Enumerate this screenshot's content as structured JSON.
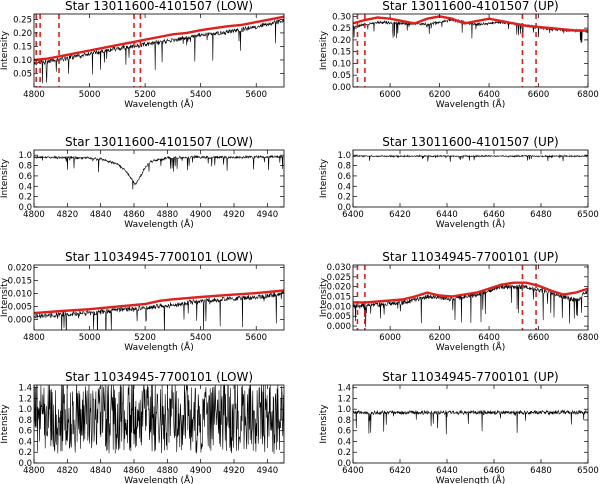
{
  "chart_data": [
    {
      "type": "line",
      "title": "Star 13011600-4101507 (LOW)",
      "xlabel": "Wavelength (Å)",
      "ylabel": "Intensity",
      "xlim": [
        4800,
        5700
      ],
      "ylim": [
        0.0,
        0.27
      ],
      "xticks": [
        4800,
        5000,
        5200,
        5400,
        5600
      ],
      "yticks": [
        0.05,
        0.1,
        0.15,
        0.2,
        0.25
      ],
      "ytick_labels": [
        "0.05",
        "0.10",
        "0.15",
        "0.20",
        "0.25"
      ],
      "series": [
        {
          "role": "spectrum",
          "color": "#000000",
          "noise": 0.45,
          "x": [
            4800,
            4900,
            5000,
            5100,
            5200,
            5300,
            5400,
            5500,
            5600,
            5700
          ],
          "y": [
            0.095,
            0.11,
            0.13,
            0.15,
            0.165,
            0.18,
            0.2,
            0.21,
            0.23,
            0.255
          ]
        },
        {
          "role": "continuum",
          "color": "#e0201c",
          "x": [
            4800,
            4850,
            4900,
            4950,
            5000,
            5050,
            5100,
            5150,
            5200,
            5250,
            5300,
            5350,
            5400,
            5450,
            5500,
            5550,
            5600,
            5650,
            5700
          ],
          "y": [
            0.1,
            0.105,
            0.115,
            0.125,
            0.135,
            0.145,
            0.155,
            0.165,
            0.175,
            0.185,
            0.195,
            0.2,
            0.21,
            0.218,
            0.225,
            0.23,
            0.24,
            0.25,
            0.26
          ]
        }
      ],
      "markers": [
        4808,
        4822,
        4890,
        5160,
        5183
      ]
    },
    {
      "type": "line",
      "title": "Star 13011600-4101507 (UP)",
      "xlabel": "Wavelength (Å)",
      "ylabel": "Intensity",
      "xlim": [
        5850,
        6800
      ],
      "ylim": [
        0.0,
        0.31
      ],
      "xticks": [
        6000,
        6200,
        6400,
        6600,
        6800
      ],
      "yticks": [
        0.0,
        0.05,
        0.1,
        0.15,
        0.2,
        0.25,
        0.3
      ],
      "ytick_labels": [
        "0.00",
        "0.05",
        "0.10",
        "0.15",
        "0.20",
        "0.25",
        "0.30"
      ],
      "series": [
        {
          "role": "spectrum",
          "color": "#000000",
          "noise": 0.25,
          "x": [
            5850,
            5950,
            6050,
            6150,
            6250,
            6350,
            6450,
            6550,
            6650,
            6800
          ],
          "y": [
            0.26,
            0.28,
            0.275,
            0.27,
            0.29,
            0.27,
            0.28,
            0.265,
            0.25,
            0.24
          ]
        },
        {
          "role": "continuum",
          "color": "#e0201c",
          "x": [
            5850,
            5900,
            5950,
            6000,
            6050,
            6100,
            6150,
            6200,
            6250,
            6300,
            6350,
            6400,
            6450,
            6500,
            6550,
            6600,
            6650,
            6700,
            6750,
            6800
          ],
          "y": [
            0.27,
            0.285,
            0.295,
            0.29,
            0.28,
            0.27,
            0.29,
            0.3,
            0.29,
            0.27,
            0.28,
            0.29,
            0.28,
            0.27,
            0.26,
            0.255,
            0.25,
            0.245,
            0.24,
            0.24
          ]
        }
      ],
      "markers": [
        5868,
        5898,
        6535,
        6590
      ]
    },
    {
      "type": "line",
      "title": "Star 13011600-4101507 (LOW)",
      "xlabel": "Wavelength (Å)",
      "ylabel": "Intensity",
      "xlim": [
        4800,
        4950
      ],
      "ylim": [
        0.0,
        1.1
      ],
      "xticks": [
        4800,
        4820,
        4840,
        4860,
        4880,
        4900,
        4920,
        4940
      ],
      "yticks": [
        0.0,
        0.2,
        0.4,
        0.6,
        0.8,
        1.0
      ],
      "ytick_labels": [
        "0.0",
        "0.2",
        "0.4",
        "0.6",
        "0.8",
        "1.0"
      ],
      "series": [
        {
          "role": "spectrum",
          "color": "#000000",
          "noise": 0.3,
          "x": [
            4800,
            4830,
            4840,
            4850,
            4855,
            4861,
            4866,
            4870,
            4880,
            4900,
            4920,
            4950
          ],
          "y": [
            0.98,
            0.97,
            0.94,
            0.85,
            0.72,
            0.45,
            0.75,
            0.9,
            0.97,
            0.98,
            0.98,
            0.99
          ]
        }
      ],
      "markers": []
    },
    {
      "type": "line",
      "title": "Star 13011600-4101507 (UP)",
      "xlabel": "Wavelength (Å)",
      "ylabel": "Intensity",
      "xlim": [
        6400,
        6500
      ],
      "ylim": [
        0.0,
        1.1
      ],
      "xticks": [
        6400,
        6420,
        6440,
        6460,
        6480,
        6500
      ],
      "yticks": [
        0.0,
        0.2,
        0.4,
        0.6,
        0.8,
        1.0
      ],
      "ytick_labels": [
        "0.0",
        "0.2",
        "0.4",
        "0.6",
        "0.8",
        "1.0"
      ],
      "series": [
        {
          "role": "spectrum",
          "color": "#000000",
          "noise": 0.12,
          "x": [
            6400,
            6420,
            6440,
            6460,
            6480,
            6500
          ],
          "y": [
            0.99,
            0.99,
            0.99,
            0.99,
            0.99,
            0.99
          ]
        }
      ],
      "markers": []
    },
    {
      "type": "line",
      "title": "Star 11034945-7700101 (LOW)",
      "xlabel": "Wavelength (Å)",
      "ylabel": "Intensity",
      "xlim": [
        4800,
        5700
      ],
      "ylim": [
        -0.004,
        0.021
      ],
      "xticks": [
        4800,
        5000,
        5200,
        5400,
        5600
      ],
      "yticks": [
        0.0,
        0.005,
        0.01,
        0.015,
        0.02
      ],
      "ytick_labels": [
        "0.000",
        "0.005",
        "0.010",
        "0.015",
        "0.020"
      ],
      "series": [
        {
          "role": "spectrum",
          "color": "#000000",
          "noise": 0.6,
          "x": [
            4800,
            4900,
            5000,
            5100,
            5200,
            5300,
            5400,
            5500,
            5600,
            5700
          ],
          "y": [
            0.002,
            0.003,
            0.0035,
            0.0045,
            0.0055,
            0.0065,
            0.008,
            0.009,
            0.0095,
            0.011
          ]
        },
        {
          "role": "continuum",
          "color": "#e0201c",
          "x": [
            4800,
            4900,
            5000,
            5100,
            5200,
            5250,
            5300,
            5400,
            5500,
            5600,
            5700
          ],
          "y": [
            0.0025,
            0.0033,
            0.004,
            0.005,
            0.006,
            0.0072,
            0.0078,
            0.0087,
            0.0095,
            0.0102,
            0.0112
          ]
        }
      ],
      "markers": []
    },
    {
      "type": "line",
      "title": "Star 11034945-7700101 (UP)",
      "xlabel": "Wavelength (Å)",
      "ylabel": "Intensity",
      "xlim": [
        5850,
        6800
      ],
      "ylim": [
        -0.002,
        0.031
      ],
      "xticks": [
        6000,
        6200,
        6400,
        6600,
        6800
      ],
      "yticks": [
        0.0,
        0.005,
        0.01,
        0.015,
        0.02,
        0.025,
        0.03
      ],
      "ytick_labels": [
        "0.000",
        "0.005",
        "0.010",
        "0.015",
        "0.020",
        "0.025",
        "0.030"
      ],
      "series": [
        {
          "role": "spectrum",
          "color": "#000000",
          "noise": 0.55,
          "x": [
            5850,
            5950,
            6050,
            6150,
            6250,
            6350,
            6450,
            6550,
            6650,
            6750,
            6800
          ],
          "y": [
            0.011,
            0.012,
            0.013,
            0.016,
            0.015,
            0.017,
            0.021,
            0.021,
            0.018,
            0.014,
            0.019
          ]
        },
        {
          "role": "continuum",
          "color": "#e0201c",
          "x": [
            5850,
            5900,
            5950,
            6000,
            6050,
            6100,
            6150,
            6200,
            6250,
            6300,
            6350,
            6400,
            6450,
            6500,
            6550,
            6600,
            6650,
            6700,
            6750,
            6800
          ],
          "y": [
            0.012,
            0.012,
            0.0125,
            0.013,
            0.0135,
            0.015,
            0.017,
            0.0155,
            0.015,
            0.016,
            0.017,
            0.019,
            0.021,
            0.022,
            0.022,
            0.0205,
            0.018,
            0.016,
            0.017,
            0.019
          ]
        }
      ],
      "markers": [
        5868,
        5898,
        6535,
        6590
      ]
    },
    {
      "type": "line",
      "title": "Star 11034945-7700101 (LOW)",
      "xlabel": "Wavelength (Å)",
      "ylabel": "Intensity",
      "xlim": [
        4800,
        4950
      ],
      "ylim": [
        0.0,
        1.45
      ],
      "xticks": [
        4800,
        4820,
        4840,
        4860,
        4880,
        4900,
        4920,
        4940
      ],
      "yticks": [
        0.0,
        0.2,
        0.4,
        0.6,
        0.8,
        1.0,
        1.2,
        1.4
      ],
      "ytick_labels": [
        "0.0",
        "0.2",
        "0.4",
        "0.6",
        "0.8",
        "1.0",
        "1.2",
        "1.4"
      ],
      "series": [
        {
          "role": "spectrum",
          "color": "#000000",
          "noise": 1.0,
          "x": [
            4800,
            4950
          ],
          "y": [
            0.85,
            0.85
          ]
        }
      ],
      "markers": []
    },
    {
      "type": "line",
      "title": "Star 11034945-7700101 (UP)",
      "xlabel": "Wavelength (Å)",
      "ylabel": "Intensity",
      "xlim": [
        6400,
        6500
      ],
      "ylim": [
        0.0,
        1.45
      ],
      "xticks": [
        6400,
        6420,
        6440,
        6460,
        6480,
        6500
      ],
      "yticks": [
        0.0,
        0.2,
        0.4,
        0.6,
        0.8,
        1.0,
        1.2,
        1.4
      ],
      "ytick_labels": [
        "0.0",
        "0.2",
        "0.4",
        "0.6",
        "0.8",
        "1.0",
        "1.2",
        "1.4"
      ],
      "series": [
        {
          "role": "spectrum",
          "color": "#000000",
          "noise": 0.35,
          "x": [
            6400,
            6500
          ],
          "y": [
            0.97,
            0.97
          ]
        }
      ],
      "markers": []
    }
  ]
}
